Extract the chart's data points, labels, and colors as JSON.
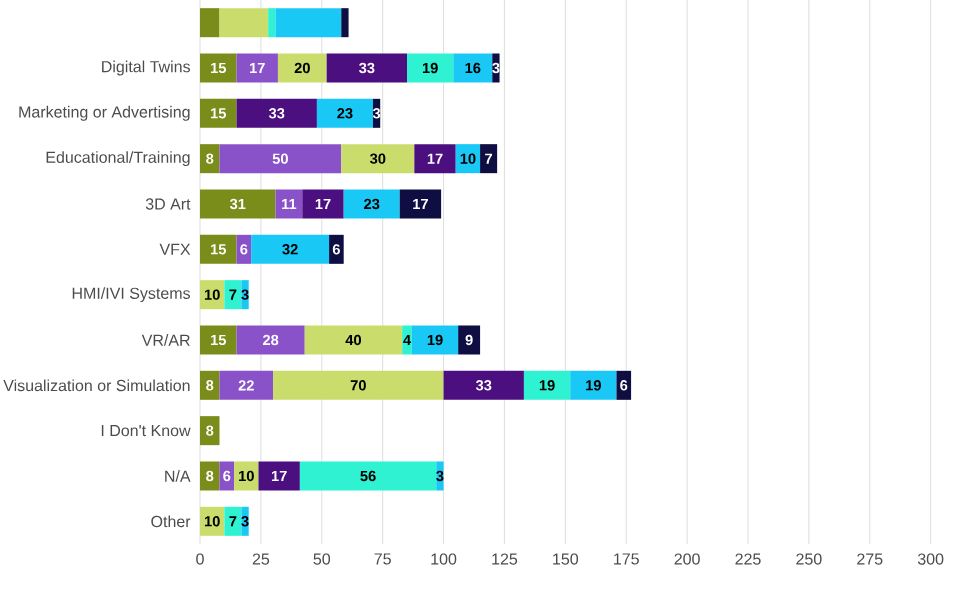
{
  "chart_data": {
    "type": "bar",
    "orientation": "horizontal",
    "stacked": true,
    "categories": [
      null,
      "Digital Twins",
      "Marketing or Advertising",
      "Educational/Training",
      "3D Art",
      "VFX",
      "HMI/IVI Systems",
      "VR/AR",
      "Visualization or Simulation",
      "I Don't Know",
      "N/A",
      "Other"
    ],
    "series": [
      {
        "color": "#7a8c1a",
        "values": [
          8,
          15,
          15,
          8,
          31,
          15,
          null,
          15,
          8,
          8,
          8,
          null
        ],
        "value_labels": [
          null,
          "15",
          "15",
          "8",
          "31",
          "15",
          null,
          "15",
          "8",
          "8",
          "8",
          null
        ]
      },
      {
        "color": "#8a52c9",
        "values": [
          null,
          17,
          null,
          50,
          11,
          6,
          null,
          28,
          22,
          null,
          6,
          null
        ],
        "value_labels": [
          null,
          "17",
          null,
          "50",
          "11",
          "6",
          null,
          "28",
          "22",
          null,
          "6",
          null
        ]
      },
      {
        "color": "#cadd6c",
        "values": [
          20,
          20,
          null,
          30,
          null,
          null,
          10,
          40,
          70,
          null,
          10,
          10
        ],
        "value_labels": [
          null,
          "20",
          null,
          "30",
          null,
          null,
          "10",
          "40",
          "70",
          null,
          "10",
          "10"
        ]
      },
      {
        "color": "#4b0f7f",
        "values": [
          null,
          33,
          33,
          17,
          17,
          null,
          null,
          null,
          33,
          null,
          17,
          null
        ],
        "value_labels": [
          null,
          "33",
          "33",
          "17",
          "17",
          null,
          null,
          null,
          "33",
          null,
          "17",
          null
        ]
      },
      {
        "color": "#2ff2d2",
        "values": [
          3,
          19,
          null,
          null,
          null,
          null,
          7,
          4,
          19,
          null,
          56,
          7
        ],
        "value_labels": [
          null,
          "19",
          null,
          null,
          null,
          null,
          "7",
          "4",
          "19",
          null,
          "56",
          "7"
        ]
      },
      {
        "color": "#1ac8f5",
        "values": [
          27,
          16,
          23,
          10,
          23,
          32,
          3,
          19,
          19,
          null,
          3,
          3
        ],
        "value_labels": [
          null,
          "16",
          "23",
          "10",
          "23",
          "32",
          "3",
          "19",
          "19",
          null,
          "3",
          "3"
        ]
      },
      {
        "color": "#0e0e42",
        "values": [
          3,
          3,
          3,
          7,
          17,
          6,
          null,
          9,
          6,
          null,
          null,
          null
        ],
        "value_labels": [
          null,
          "3",
          "3",
          "7",
          "17",
          "6",
          null,
          "9",
          "6",
          null,
          null,
          null
        ]
      }
    ],
    "xlim": [
      0,
      300
    ],
    "xticks": [
      0,
      25,
      50,
      75,
      100,
      125,
      150,
      175,
      200,
      225,
      250,
      275,
      300
    ],
    "grid": "x"
  }
}
